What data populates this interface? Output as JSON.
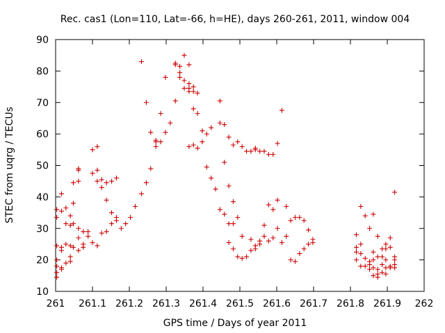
{
  "chart_data": {
    "type": "scatter",
    "title": "Rec. cas1 (Lon=110, Lat=-66, h=HE), days 260-261, 2011, window 004",
    "xlabel": "GPS time / Days of year 2011",
    "ylabel": "STEC from uqrg / TECUs",
    "xlim": [
      261,
      262
    ],
    "ylim": [
      10,
      90
    ],
    "xticks": [
      "261",
      "261.1",
      "261.2",
      "261.3",
      "261.4",
      "261.5",
      "261.6",
      "261.7",
      "261.8",
      "261.9",
      "262"
    ],
    "xtick_values": [
      261,
      261.1,
      261.2,
      261.3,
      261.4,
      261.5,
      261.6,
      261.7,
      261.8,
      261.9,
      262
    ],
    "yticks": [
      "10",
      "20",
      "30",
      "40",
      "50",
      "60",
      "70",
      "80",
      "90"
    ],
    "ytick_values": [
      10,
      20,
      30,
      40,
      50,
      60,
      70,
      80,
      90
    ],
    "grid": false,
    "legend": "none",
    "marker": "+",
    "marker_color": "#cc0000",
    "series": [
      {
        "name": "STEC",
        "points": [
          [
            261.003,
            36.0
          ],
          [
            261.003,
            33.5
          ],
          [
            261.003,
            24.5
          ],
          [
            261.003,
            20.0
          ],
          [
            261.003,
            18.0
          ],
          [
            261.003,
            16.0
          ],
          [
            261.003,
            14.5
          ],
          [
            261.016,
            41.0
          ],
          [
            261.016,
            35.5
          ],
          [
            261.016,
            24.0
          ],
          [
            261.016,
            23.0
          ],
          [
            261.016,
            17.5
          ],
          [
            261.016,
            17.0
          ],
          [
            261.028,
            36.5
          ],
          [
            261.028,
            31.5
          ],
          [
            261.028,
            25.0
          ],
          [
            261.028,
            19.0
          ],
          [
            261.04,
            34.0
          ],
          [
            261.04,
            31.0
          ],
          [
            261.04,
            24.5
          ],
          [
            261.04,
            21.0
          ],
          [
            261.04,
            19.5
          ],
          [
            261.048,
            44.5
          ],
          [
            261.048,
            38.0
          ],
          [
            261.048,
            31.5
          ],
          [
            261.048,
            24.0
          ],
          [
            261.062,
            49.0
          ],
          [
            261.062,
            48.5
          ],
          [
            261.062,
            45.0
          ],
          [
            261.062,
            30.0
          ],
          [
            261.062,
            27.0
          ],
          [
            261.062,
            23.0
          ],
          [
            261.075,
            29.0
          ],
          [
            261.075,
            25.0
          ],
          [
            261.075,
            24.0
          ],
          [
            261.088,
            29.0
          ],
          [
            261.088,
            27.5
          ],
          [
            261.1,
            55.0
          ],
          [
            261.1,
            47.5
          ],
          [
            261.1,
            25.5
          ],
          [
            261.113,
            56.0
          ],
          [
            261.113,
            48.5
          ],
          [
            261.113,
            45.0
          ],
          [
            261.113,
            24.5
          ],
          [
            261.125,
            45.5
          ],
          [
            261.125,
            43.0
          ],
          [
            261.125,
            28.5
          ],
          [
            261.138,
            44.5
          ],
          [
            261.138,
            39.0
          ],
          [
            261.138,
            29.0
          ],
          [
            261.152,
            45.0
          ],
          [
            261.152,
            35.0
          ],
          [
            261.152,
            31.5
          ],
          [
            261.165,
            46.0
          ],
          [
            261.165,
            33.5
          ],
          [
            261.165,
            32.5
          ],
          [
            261.178,
            30.0
          ],
          [
            261.19,
            31.5
          ],
          [
            261.203,
            33.5
          ],
          [
            261.216,
            37.0
          ],
          [
            261.233,
            83.0
          ],
          [
            261.233,
            41.0
          ],
          [
            261.246,
            70.0
          ],
          [
            261.246,
            44.5
          ],
          [
            261.258,
            60.5
          ],
          [
            261.258,
            49.0
          ],
          [
            261.272,
            58.0
          ],
          [
            261.272,
            57.5
          ],
          [
            261.272,
            56.0
          ],
          [
            261.285,
            66.5
          ],
          [
            261.285,
            57.5
          ],
          [
            261.298,
            78.0
          ],
          [
            261.298,
            60.5
          ],
          [
            261.311,
            63.5
          ],
          [
            261.325,
            82.5
          ],
          [
            261.325,
            82.0
          ],
          [
            261.325,
            70.5
          ],
          [
            261.337,
            81.5
          ],
          [
            261.337,
            79.5
          ],
          [
            261.337,
            78.0
          ],
          [
            261.349,
            85.0
          ],
          [
            261.349,
            77.0
          ],
          [
            261.349,
            74.5
          ],
          [
            261.362,
            82.0
          ],
          [
            261.362,
            76.0
          ],
          [
            261.362,
            74.5
          ],
          [
            261.362,
            73.5
          ],
          [
            261.362,
            56.0
          ],
          [
            261.374,
            75.0
          ],
          [
            261.374,
            73.5
          ],
          [
            261.374,
            68.0
          ],
          [
            261.374,
            56.5
          ],
          [
            261.385,
            73.0
          ],
          [
            261.385,
            66.5
          ],
          [
            261.385,
            55.5
          ],
          [
            261.398,
            61.0
          ],
          [
            261.398,
            57.5
          ],
          [
            261.41,
            60.0
          ],
          [
            261.41,
            49.5
          ],
          [
            261.422,
            62.0
          ],
          [
            261.422,
            46.0
          ],
          [
            261.434,
            42.5
          ],
          [
            261.446,
            70.5
          ],
          [
            261.446,
            63.5
          ],
          [
            261.446,
            36.0
          ],
          [
            261.458,
            63.0
          ],
          [
            261.458,
            51.0
          ],
          [
            261.458,
            34.5
          ],
          [
            261.47,
            59.0
          ],
          [
            261.47,
            43.5
          ],
          [
            261.47,
            31.5
          ],
          [
            261.47,
            25.5
          ],
          [
            261.482,
            56.5
          ],
          [
            261.482,
            38.5
          ],
          [
            261.482,
            31.5
          ],
          [
            261.482,
            23.5
          ],
          [
            261.494,
            57.5
          ],
          [
            261.494,
            33.5
          ],
          [
            261.494,
            21.0
          ],
          [
            261.506,
            56.0
          ],
          [
            261.506,
            27.5
          ],
          [
            261.506,
            20.5
          ],
          [
            261.518,
            54.5
          ],
          [
            261.518,
            21.0
          ],
          [
            261.53,
            54.5
          ],
          [
            261.53,
            26.5
          ],
          [
            261.53,
            23.0
          ],
          [
            261.542,
            55.5
          ],
          [
            261.542,
            55.0
          ],
          [
            261.542,
            24.5
          ],
          [
            261.542,
            23.5
          ],
          [
            261.554,
            54.5
          ],
          [
            261.554,
            26.0
          ],
          [
            261.554,
            25.0
          ],
          [
            261.566,
            54.5
          ],
          [
            261.566,
            31.0
          ],
          [
            261.566,
            27.5
          ],
          [
            261.578,
            53.5
          ],
          [
            261.578,
            37.5
          ],
          [
            261.578,
            26.0
          ],
          [
            261.59,
            53.5
          ],
          [
            261.59,
            36.0
          ],
          [
            261.59,
            27.0
          ],
          [
            261.602,
            57.0
          ],
          [
            261.602,
            39.0
          ],
          [
            261.602,
            30.0
          ],
          [
            261.614,
            67.5
          ],
          [
            261.614,
            25.5
          ],
          [
            261.626,
            37.0
          ],
          [
            261.626,
            27.5
          ],
          [
            261.638,
            32.5
          ],
          [
            261.638,
            20.0
          ],
          [
            261.65,
            33.5
          ],
          [
            261.65,
            19.5
          ],
          [
            261.662,
            33.5
          ],
          [
            261.662,
            22.0
          ],
          [
            261.674,
            32.5
          ],
          [
            261.674,
            23.5
          ],
          [
            261.686,
            29.5
          ],
          [
            261.686,
            25.0
          ],
          [
            261.698,
            26.5
          ],
          [
            261.698,
            25.5
          ],
          [
            261.816,
            28.0
          ],
          [
            261.816,
            24.0
          ],
          [
            261.816,
            22.5
          ],
          [
            261.816,
            20.0
          ],
          [
            261.828,
            37.0
          ],
          [
            261.828,
            25.0
          ],
          [
            261.828,
            22.0
          ],
          [
            261.828,
            18.0
          ],
          [
            261.84,
            34.0
          ],
          [
            261.84,
            20.5
          ],
          [
            261.84,
            18.0
          ],
          [
            261.852,
            30.0
          ],
          [
            261.852,
            19.5
          ],
          [
            261.852,
            18.5
          ],
          [
            261.852,
            17.0
          ],
          [
            261.862,
            34.5
          ],
          [
            261.862,
            22.5
          ],
          [
            261.862,
            20.0
          ],
          [
            261.862,
            17.5
          ],
          [
            261.862,
            15.0
          ],
          [
            261.874,
            27.5
          ],
          [
            261.874,
            21.0
          ],
          [
            261.874,
            17.0
          ],
          [
            261.874,
            15.5
          ],
          [
            261.874,
            14.5
          ],
          [
            261.886,
            23.5
          ],
          [
            261.886,
            21.0
          ],
          [
            261.886,
            18.5
          ],
          [
            261.886,
            16.0
          ],
          [
            261.896,
            25.0
          ],
          [
            261.896,
            23.5
          ],
          [
            261.896,
            20.0
          ],
          [
            261.896,
            17.5
          ],
          [
            261.896,
            15.5
          ],
          [
            261.908,
            27.0
          ],
          [
            261.908,
            24.0
          ],
          [
            261.908,
            18.0
          ],
          [
            261.908,
            17.5
          ],
          [
            261.92,
            41.5
          ],
          [
            261.92,
            21.0
          ],
          [
            261.92,
            20.0
          ],
          [
            261.92,
            18.5
          ],
          [
            261.92,
            17.5
          ]
        ]
      }
    ]
  }
}
